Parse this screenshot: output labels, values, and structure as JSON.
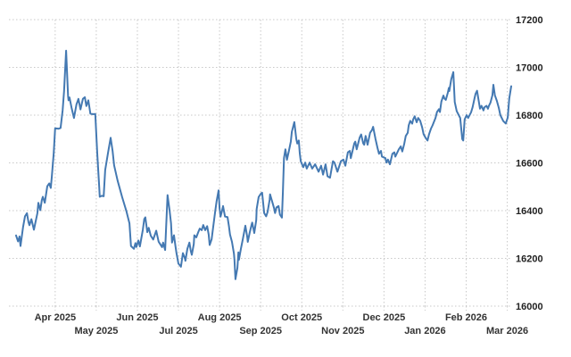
{
  "chart_data": {
    "type": "line",
    "y_axis_position": "right",
    "grid": "dotted",
    "ylim": [
      16000,
      17200
    ],
    "y_ticks": [
      17200,
      17000,
      16800,
      16600,
      16400,
      16200,
      16000
    ],
    "x_ticks": [
      {
        "label": "Apr 2025",
        "f": 0.079,
        "row": 1
      },
      {
        "label": "May 2025",
        "f": 0.162,
        "row": 2
      },
      {
        "label": "Jun 2025",
        "f": 0.245,
        "row": 1
      },
      {
        "label": "Jul 2025",
        "f": 0.328,
        "row": 2
      },
      {
        "label": "Aug 2025",
        "f": 0.411,
        "row": 1
      },
      {
        "label": "Sep 2025",
        "f": 0.494,
        "row": 2
      },
      {
        "label": "Oct 2025",
        "f": 0.577,
        "row": 1
      },
      {
        "label": "Nov 2025",
        "f": 0.66,
        "row": 2
      },
      {
        "label": "Dec 2025",
        "f": 0.743,
        "row": 1
      },
      {
        "label": "Jan 2026",
        "f": 0.826,
        "row": 2
      },
      {
        "label": "Feb 2026",
        "f": 0.909,
        "row": 1
      },
      {
        "label": "Mar 2026",
        "f": 0.992,
        "row": 2
      }
    ],
    "colors": {
      "line": "#4479b2",
      "grid": "#c8c8c8",
      "y_label": "#222222",
      "x_label": "#333333",
      "background": "#ffffff"
    },
    "points": [
      [
        0.0,
        16296
      ],
      [
        0.004,
        16271
      ],
      [
        0.007,
        16292
      ],
      [
        0.009,
        16252
      ],
      [
        0.014,
        16330
      ],
      [
        0.018,
        16376
      ],
      [
        0.022,
        16389
      ],
      [
        0.025,
        16352
      ],
      [
        0.027,
        16339
      ],
      [
        0.031,
        16364
      ],
      [
        0.036,
        16320
      ],
      [
        0.043,
        16389
      ],
      [
        0.045,
        16433
      ],
      [
        0.049,
        16402
      ],
      [
        0.052,
        16445
      ],
      [
        0.054,
        16458
      ],
      [
        0.058,
        16433
      ],
      [
        0.063,
        16502
      ],
      [
        0.067,
        16514
      ],
      [
        0.07,
        16495
      ],
      [
        0.072,
        16539
      ],
      [
        0.076,
        16640
      ],
      [
        0.079,
        16745
      ],
      [
        0.086,
        16743
      ],
      [
        0.09,
        16746
      ],
      [
        0.094,
        16820
      ],
      [
        0.097,
        16900
      ],
      [
        0.101,
        17070
      ],
      [
        0.105,
        16880
      ],
      [
        0.106,
        16862
      ],
      [
        0.108,
        16874
      ],
      [
        0.112,
        16831
      ],
      [
        0.117,
        16788
      ],
      [
        0.122,
        16845
      ],
      [
        0.126,
        16868
      ],
      [
        0.13,
        16824
      ],
      [
        0.135,
        16868
      ],
      [
        0.139,
        16875
      ],
      [
        0.142,
        16838
      ],
      [
        0.146,
        16862
      ],
      [
        0.15,
        16806
      ],
      [
        0.155,
        16804
      ],
      [
        0.16,
        16805
      ],
      [
        0.164,
        16640
      ],
      [
        0.168,
        16500
      ],
      [
        0.169,
        16458
      ],
      [
        0.173,
        16462
      ],
      [
        0.177,
        16460
      ],
      [
        0.18,
        16570
      ],
      [
        0.186,
        16645
      ],
      [
        0.191,
        16705
      ],
      [
        0.195,
        16650
      ],
      [
        0.198,
        16590
      ],
      [
        0.205,
        16526
      ],
      [
        0.214,
        16458
      ],
      [
        0.223,
        16396
      ],
      [
        0.229,
        16347
      ],
      [
        0.232,
        16252
      ],
      [
        0.238,
        16240
      ],
      [
        0.241,
        16264
      ],
      [
        0.243,
        16248
      ],
      [
        0.247,
        16275
      ],
      [
        0.25,
        16250
      ],
      [
        0.256,
        16320
      ],
      [
        0.259,
        16365
      ],
      [
        0.261,
        16372
      ],
      [
        0.265,
        16310
      ],
      [
        0.268,
        16328
      ],
      [
        0.272,
        16295
      ],
      [
        0.277,
        16279
      ],
      [
        0.283,
        16316
      ],
      [
        0.288,
        16270
      ],
      [
        0.295,
        16247
      ],
      [
        0.297,
        16266
      ],
      [
        0.301,
        16235
      ],
      [
        0.303,
        16330
      ],
      [
        0.306,
        16465
      ],
      [
        0.31,
        16400
      ],
      [
        0.313,
        16347
      ],
      [
        0.315,
        16266
      ],
      [
        0.319,
        16297
      ],
      [
        0.322,
        16250
      ],
      [
        0.324,
        16222
      ],
      [
        0.328,
        16178
      ],
      [
        0.332,
        16168
      ],
      [
        0.333,
        16165
      ],
      [
        0.337,
        16222
      ],
      [
        0.341,
        16200
      ],
      [
        0.342,
        16190
      ],
      [
        0.346,
        16240
      ],
      [
        0.35,
        16266
      ],
      [
        0.353,
        16230
      ],
      [
        0.355,
        16215
      ],
      [
        0.359,
        16260
      ],
      [
        0.36,
        16297
      ],
      [
        0.364,
        16288
      ],
      [
        0.368,
        16310
      ],
      [
        0.371,
        16325
      ],
      [
        0.375,
        16318
      ],
      [
        0.378,
        16340
      ],
      [
        0.382,
        16318
      ],
      [
        0.386,
        16335
      ],
      [
        0.389,
        16300
      ],
      [
        0.391,
        16256
      ],
      [
        0.395,
        16280
      ],
      [
        0.398,
        16330
      ],
      [
        0.402,
        16394
      ],
      [
        0.405,
        16440
      ],
      [
        0.409,
        16485
      ],
      [
        0.411,
        16410
      ],
      [
        0.413,
        16375
      ],
      [
        0.416,
        16400
      ],
      [
        0.418,
        16419
      ],
      [
        0.422,
        16375
      ],
      [
        0.427,
        16373
      ],
      [
        0.43,
        16335
      ],
      [
        0.432,
        16300
      ],
      [
        0.436,
        16269
      ],
      [
        0.44,
        16220
      ],
      [
        0.441,
        16194
      ],
      [
        0.443,
        16113
      ],
      [
        0.447,
        16160
      ],
      [
        0.449,
        16225
      ],
      [
        0.45,
        16194
      ],
      [
        0.454,
        16240
      ],
      [
        0.458,
        16281
      ],
      [
        0.463,
        16337
      ],
      [
        0.467,
        16288
      ],
      [
        0.468,
        16269
      ],
      [
        0.472,
        16310
      ],
      [
        0.476,
        16344
      ],
      [
        0.477,
        16350
      ],
      [
        0.481,
        16306
      ],
      [
        0.485,
        16360
      ],
      [
        0.486,
        16407
      ],
      [
        0.49,
        16457
      ],
      [
        0.494,
        16470
      ],
      [
        0.497,
        16475
      ],
      [
        0.501,
        16390
      ],
      [
        0.505,
        16376
      ],
      [
        0.508,
        16394
      ],
      [
        0.512,
        16445
      ],
      [
        0.513,
        16468
      ],
      [
        0.517,
        16440
      ],
      [
        0.521,
        16410
      ],
      [
        0.523,
        16390
      ],
      [
        0.526,
        16414
      ],
      [
        0.53,
        16419
      ],
      [
        0.533,
        16383
      ],
      [
        0.537,
        16371
      ],
      [
        0.539,
        16480
      ],
      [
        0.541,
        16620
      ],
      [
        0.544,
        16657
      ],
      [
        0.547,
        16613
      ],
      [
        0.551,
        16650
      ],
      [
        0.555,
        16690
      ],
      [
        0.557,
        16730
      ],
      [
        0.562,
        16771
      ],
      [
        0.566,
        16700
      ],
      [
        0.568,
        16681
      ],
      [
        0.571,
        16694
      ],
      [
        0.573,
        16640
      ],
      [
        0.575,
        16607
      ],
      [
        0.58,
        16582
      ],
      [
        0.584,
        16601
      ],
      [
        0.587,
        16576
      ],
      [
        0.593,
        16601
      ],
      [
        0.598,
        16576
      ],
      [
        0.604,
        16594
      ],
      [
        0.611,
        16563
      ],
      [
        0.616,
        16588
      ],
      [
        0.62,
        16551
      ],
      [
        0.625,
        16594
      ],
      [
        0.629,
        16544
      ],
      [
        0.634,
        16538
      ],
      [
        0.64,
        16607
      ],
      [
        0.643,
        16601
      ],
      [
        0.649,
        16563
      ],
      [
        0.656,
        16607
      ],
      [
        0.661,
        16614
      ],
      [
        0.665,
        16588
      ],
      [
        0.67,
        16644
      ],
      [
        0.674,
        16650
      ],
      [
        0.676,
        16620
      ],
      [
        0.683,
        16682
      ],
      [
        0.685,
        16689
      ],
      [
        0.688,
        16657
      ],
      [
        0.694,
        16707
      ],
      [
        0.697,
        16719
      ],
      [
        0.701,
        16682
      ],
      [
        0.703,
        16676
      ],
      [
        0.706,
        16713
      ],
      [
        0.71,
        16676
      ],
      [
        0.715,
        16726
      ],
      [
        0.719,
        16738
      ],
      [
        0.721,
        16751
      ],
      [
        0.726,
        16700
      ],
      [
        0.73,
        16663
      ],
      [
        0.733,
        16638
      ],
      [
        0.737,
        16650
      ],
      [
        0.739,
        16626
      ],
      [
        0.746,
        16620
      ],
      [
        0.748,
        16601
      ],
      [
        0.751,
        16614
      ],
      [
        0.755,
        16594
      ],
      [
        0.76,
        16638
      ],
      [
        0.764,
        16644
      ],
      [
        0.766,
        16626
      ],
      [
        0.773,
        16657
      ],
      [
        0.777,
        16669
      ],
      [
        0.78,
        16648
      ],
      [
        0.784,
        16680
      ],
      [
        0.787,
        16713
      ],
      [
        0.791,
        16726
      ],
      [
        0.793,
        16757
      ],
      [
        0.796,
        16776
      ],
      [
        0.8,
        16764
      ],
      [
        0.802,
        16782
      ],
      [
        0.805,
        16795
      ],
      [
        0.809,
        16770
      ],
      [
        0.812,
        16788
      ],
      [
        0.816,
        16777
      ],
      [
        0.82,
        16750
      ],
      [
        0.823,
        16720
      ],
      [
        0.827,
        16705
      ],
      [
        0.831,
        16694
      ],
      [
        0.834,
        16720
      ],
      [
        0.838,
        16744
      ],
      [
        0.841,
        16757
      ],
      [
        0.847,
        16788
      ],
      [
        0.85,
        16813
      ],
      [
        0.854,
        16825
      ],
      [
        0.856,
        16813
      ],
      [
        0.859,
        16857
      ],
      [
        0.863,
        16882
      ],
      [
        0.865,
        16870
      ],
      [
        0.868,
        16864
      ],
      [
        0.872,
        16895
      ],
      [
        0.874,
        16914
      ],
      [
        0.875,
        16901
      ],
      [
        0.879,
        16951
      ],
      [
        0.883,
        16980
      ],
      [
        0.886,
        16855
      ],
      [
        0.89,
        16817
      ],
      [
        0.894,
        16800
      ],
      [
        0.897,
        16788
      ],
      [
        0.901,
        16700
      ],
      [
        0.903,
        16694
      ],
      [
        0.906,
        16782
      ],
      [
        0.91,
        16800
      ],
      [
        0.913,
        16788
      ],
      [
        0.919,
        16812
      ],
      [
        0.922,
        16833
      ],
      [
        0.926,
        16871
      ],
      [
        0.928,
        16889
      ],
      [
        0.931,
        16902
      ],
      [
        0.935,
        16852
      ],
      [
        0.937,
        16827
      ],
      [
        0.94,
        16839
      ],
      [
        0.944,
        16820
      ],
      [
        0.946,
        16833
      ],
      [
        0.95,
        16839
      ],
      [
        0.953,
        16827
      ],
      [
        0.955,
        16839
      ],
      [
        0.958,
        16852
      ],
      [
        0.962,
        16883
      ],
      [
        0.964,
        16927
      ],
      [
        0.967,
        16883
      ],
      [
        0.971,
        16860
      ],
      [
        0.975,
        16830
      ],
      [
        0.978,
        16800
      ],
      [
        0.984,
        16775
      ],
      [
        0.989,
        16765
      ],
      [
        0.993,
        16790
      ],
      [
        0.996,
        16870
      ],
      [
        1.0,
        16921
      ]
    ]
  }
}
